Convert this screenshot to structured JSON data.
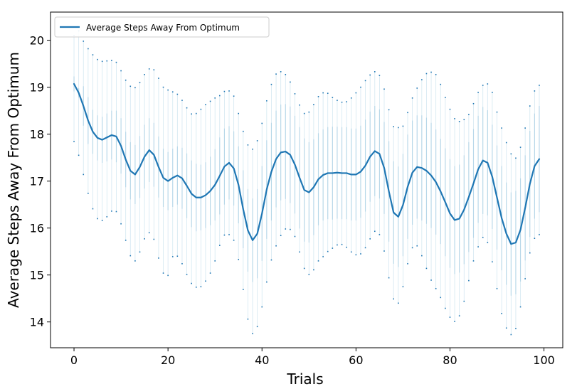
{
  "chart_data": {
    "type": "line",
    "title": "",
    "xlabel": "Trials",
    "ylabel": "Average Steps Away From Optimum",
    "xlim": [
      -5,
      104
    ],
    "ylim": [
      13.45,
      20.6
    ],
    "xticks": [
      0,
      20,
      40,
      60,
      80,
      100
    ],
    "yticks": [
      14,
      15,
      16,
      17,
      18,
      19,
      20
    ],
    "grid": false,
    "legend": {
      "position": "top-left",
      "entries": [
        "Average Steps Away From Optimum"
      ]
    },
    "colors": {
      "line": "#1f77b4",
      "errorbar": "#9ecae1"
    },
    "series": [
      {
        "name": "Average Steps Away From Optimum",
        "x": [
          0,
          1,
          2,
          3,
          4,
          5,
          6,
          7,
          8,
          9,
          10,
          11,
          12,
          13,
          14,
          15,
          16,
          17,
          18,
          19,
          20,
          21,
          22,
          23,
          24,
          25,
          26,
          27,
          28,
          29,
          30,
          31,
          32,
          33,
          34,
          35,
          36,
          37,
          38,
          39,
          40,
          41,
          42,
          43,
          44,
          45,
          46,
          47,
          48,
          49,
          50,
          51,
          52,
          53,
          54,
          55,
          56,
          57,
          58,
          59,
          60,
          61,
          62,
          63,
          64,
          65,
          66,
          67,
          68,
          69,
          70,
          71,
          72,
          73,
          74,
          75,
          76,
          77,
          78,
          79,
          80,
          81,
          82,
          83,
          84,
          85,
          86,
          87,
          88,
          89,
          90,
          91,
          92,
          93,
          94,
          95,
          96,
          97,
          98,
          99
        ],
        "values": [
          19.07,
          18.88,
          18.6,
          18.29,
          18.05,
          17.92,
          17.88,
          17.93,
          17.98,
          17.95,
          17.75,
          17.46,
          17.22,
          17.14,
          17.3,
          17.52,
          17.66,
          17.56,
          17.3,
          17.07,
          17.0,
          17.07,
          17.12,
          17.06,
          16.9,
          16.73,
          16.65,
          16.65,
          16.7,
          16.79,
          16.92,
          17.11,
          17.31,
          17.39,
          17.27,
          16.92,
          16.4,
          15.95,
          15.74,
          15.88,
          16.31,
          16.82,
          17.2,
          17.47,
          17.61,
          17.63,
          17.56,
          17.35,
          17.07,
          16.81,
          16.76,
          16.87,
          17.04,
          17.13,
          17.17,
          17.17,
          17.18,
          17.17,
          17.17,
          17.14,
          17.14,
          17.2,
          17.33,
          17.52,
          17.64,
          17.58,
          17.28,
          16.78,
          16.33,
          16.24,
          16.49,
          16.88,
          17.18,
          17.3,
          17.28,
          17.22,
          17.12,
          16.98,
          16.78,
          16.55,
          16.31,
          16.17,
          16.2,
          16.39,
          16.66,
          16.95,
          17.25,
          17.44,
          17.39,
          17.09,
          16.65,
          16.21,
          15.88,
          15.66,
          15.69,
          15.96,
          16.43,
          16.94,
          17.32,
          17.47
        ],
        "upper": [
          19.23,
          18.98,
          19.02,
          18.79,
          18.52,
          18.4,
          18.37,
          18.44,
          18.5,
          18.5,
          18.34,
          18.05,
          17.83,
          17.77,
          17.96,
          18.2,
          18.34,
          18.24,
          17.95,
          17.69,
          17.62,
          17.69,
          17.74,
          17.71,
          17.59,
          17.44,
          17.37,
          17.35,
          17.4,
          17.52,
          17.68,
          17.93,
          18.12,
          18.17,
          18.06,
          17.74,
          17.23,
          16.83,
          16.63,
          16.83,
          17.32,
          17.87,
          18.24,
          18.5,
          18.63,
          18.64,
          18.59,
          18.39,
          18.15,
          17.91,
          17.83,
          17.89,
          18.02,
          18.1,
          18.15,
          18.16,
          18.16,
          18.15,
          18.15,
          18.12,
          18.12,
          18.18,
          18.31,
          18.48,
          18.6,
          18.53,
          18.26,
          17.85,
          17.42,
          17.31,
          17.58,
          17.99,
          18.29,
          18.4,
          18.4,
          18.35,
          18.24,
          18.1,
          17.9,
          17.7,
          17.47,
          17.32,
          17.35,
          17.55,
          17.83,
          18.11,
          18.39,
          18.58,
          18.51,
          18.2,
          17.76,
          17.32,
          16.97,
          16.76,
          16.79,
          17.06,
          17.55,
          18.07,
          18.44,
          18.6
        ],
        "lower": [
          18.91,
          18.78,
          18.18,
          17.79,
          17.58,
          17.44,
          17.39,
          17.42,
          17.46,
          17.4,
          17.16,
          16.87,
          16.61,
          16.51,
          16.64,
          16.84,
          16.98,
          16.88,
          16.65,
          16.45,
          16.38,
          16.45,
          16.5,
          16.41,
          16.21,
          16.02,
          15.93,
          15.95,
          16.0,
          16.06,
          16.16,
          16.29,
          16.5,
          16.61,
          16.48,
          16.1,
          15.57,
          15.07,
          14.85,
          14.93,
          15.3,
          15.77,
          16.16,
          16.44,
          16.59,
          16.62,
          16.53,
          16.31,
          15.99,
          15.71,
          15.69,
          15.85,
          16.06,
          16.16,
          16.19,
          16.18,
          16.2,
          16.19,
          16.19,
          16.16,
          16.16,
          16.22,
          16.35,
          16.56,
          16.68,
          16.63,
          16.3,
          15.71,
          15.24,
          15.17,
          15.4,
          15.77,
          16.07,
          16.2,
          16.16,
          16.09,
          16.0,
          15.86,
          15.66,
          15.4,
          15.15,
          15.02,
          15.05,
          15.23,
          15.49,
          15.79,
          16.11,
          16.3,
          16.27,
          15.98,
          15.54,
          15.1,
          14.79,
          14.56,
          14.59,
          14.86,
          15.31,
          15.81,
          16.2,
          16.34
        ],
        "whisker_high": [
          20.1,
          20.2,
          19.98,
          19.82,
          19.69,
          19.59,
          19.55,
          19.56,
          19.57,
          19.53,
          19.35,
          19.15,
          19.02,
          18.99,
          19.1,
          19.27,
          19.39,
          19.37,
          19.19,
          19.0,
          18.94,
          18.9,
          18.85,
          18.72,
          18.56,
          18.43,
          18.44,
          18.53,
          18.63,
          18.7,
          18.77,
          18.82,
          18.91,
          18.92,
          18.81,
          18.44,
          18.06,
          17.77,
          17.68,
          17.86,
          18.23,
          18.71,
          19.06,
          19.28,
          19.33,
          19.27,
          19.11,
          18.86,
          18.62,
          18.44,
          18.47,
          18.63,
          18.8,
          18.88,
          18.87,
          18.78,
          18.72,
          18.68,
          18.69,
          18.77,
          18.88,
          19.0,
          19.14,
          19.26,
          19.33,
          19.25,
          18.96,
          18.52,
          18.16,
          18.14,
          18.17,
          18.46,
          18.77,
          18.98,
          19.16,
          19.29,
          19.32,
          19.27,
          19.06,
          18.78,
          18.53,
          18.33,
          18.27,
          18.31,
          18.42,
          18.65,
          18.89,
          19.04,
          19.07,
          18.89,
          18.47,
          18.13,
          17.82,
          17.58,
          17.49,
          17.72,
          18.13,
          18.6,
          18.92,
          19.04
        ],
        "whisker_low": [
          17.84,
          17.55,
          17.14,
          16.74,
          16.41,
          16.2,
          16.16,
          16.24,
          16.36,
          16.35,
          16.09,
          15.74,
          15.41,
          15.3,
          15.49,
          15.77,
          15.9,
          15.76,
          15.36,
          15.04,
          14.99,
          15.39,
          15.4,
          15.24,
          15.01,
          14.82,
          14.74,
          14.75,
          14.87,
          15.04,
          15.3,
          15.63,
          15.85,
          15.86,
          15.74,
          15.33,
          14.69,
          14.06,
          13.75,
          13.9,
          14.32,
          14.85,
          15.32,
          15.62,
          15.84,
          15.98,
          15.97,
          15.82,
          15.49,
          15.14,
          15.01,
          15.11,
          15.3,
          15.39,
          15.5,
          15.57,
          15.64,
          15.65,
          15.59,
          15.49,
          15.43,
          15.45,
          15.58,
          15.77,
          15.93,
          15.86,
          15.51,
          14.94,
          14.49,
          14.4,
          14.75,
          15.24,
          15.58,
          15.62,
          15.41,
          15.14,
          14.89,
          14.71,
          14.52,
          14.29,
          14.1,
          14.01,
          14.13,
          14.44,
          14.88,
          15.3,
          15.6,
          15.8,
          15.69,
          15.28,
          14.71,
          14.18,
          13.87,
          13.73,
          13.86,
          14.32,
          14.92,
          15.47,
          15.78,
          15.86
        ]
      }
    ]
  }
}
